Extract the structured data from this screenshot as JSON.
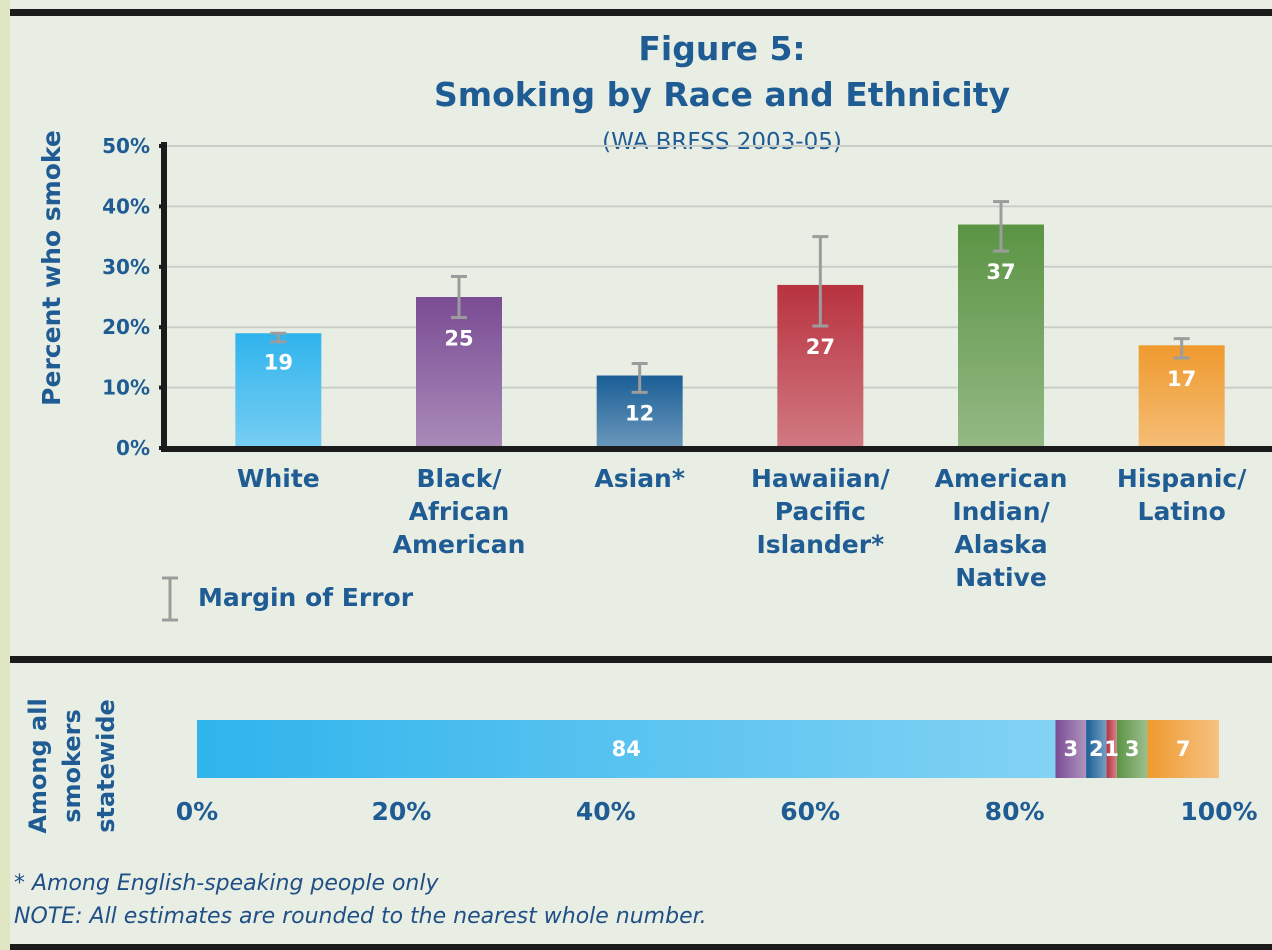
{
  "chart_data": [
    {
      "type": "bar",
      "title": "Figure 5:",
      "subtitle_line": "Smoking by Race and Ethnicity",
      "source": "(WA BRFSS 2003-05)",
      "ylabel": "Percent who smoke",
      "ylim": [
        0,
        50
      ],
      "yticks": [
        "0%",
        "10%",
        "20%",
        "30%",
        "40%",
        "50%"
      ],
      "grid": true,
      "categories": [
        [
          "White"
        ],
        [
          "Black/",
          "African",
          "American"
        ],
        [
          "Asian*"
        ],
        [
          "Hawaiian/",
          "Pacific",
          "Islander*"
        ],
        [
          "American",
          "Indian/",
          "Alaska",
          "Native"
        ],
        [
          "Hispanic/",
          "Latino"
        ]
      ],
      "values": [
        19,
        25,
        12,
        27,
        37,
        17
      ],
      "data_labels": [
        "19",
        "25",
        "12",
        "27",
        "37",
        "17"
      ],
      "error_bars": [
        [
          17.6,
          19.0
        ],
        [
          21.6,
          28.4
        ],
        [
          9.2,
          14.0
        ],
        [
          20.2,
          35.0
        ],
        [
          32.6,
          40.8
        ],
        [
          14.9,
          18.1
        ]
      ],
      "colors": [
        "#2fb4ec",
        "#7a4c94",
        "#1a5f96",
        "#b8323f",
        "#5b9444",
        "#ef9a2e"
      ],
      "legend": "Margin of Error"
    },
    {
      "type": "stacked-bar",
      "ylabel": [
        "Among all",
        "smokers",
        "statewide"
      ],
      "xlim": [
        0,
        100
      ],
      "xticks": [
        "0%",
        "20%",
        "40%",
        "60%",
        "80%",
        "100%"
      ],
      "segments": [
        {
          "value": 84,
          "label": "84",
          "color": "#2fb4ec"
        },
        {
          "value": 3,
          "label": "3",
          "color": "#7a4c94"
        },
        {
          "value": 2,
          "label": "2",
          "color": "#1a5f96"
        },
        {
          "value": 1,
          "label": "1",
          "color": "#b8323f"
        },
        {
          "value": 3,
          "label": "3",
          "color": "#5b9444"
        },
        {
          "value": 7,
          "label": "7",
          "color": "#ef9a2e"
        }
      ]
    }
  ],
  "footnotes": {
    "asterisk": "* Among English-speaking people only",
    "note": "NOTE:  All estimates are rounded to the nearest whole number."
  }
}
